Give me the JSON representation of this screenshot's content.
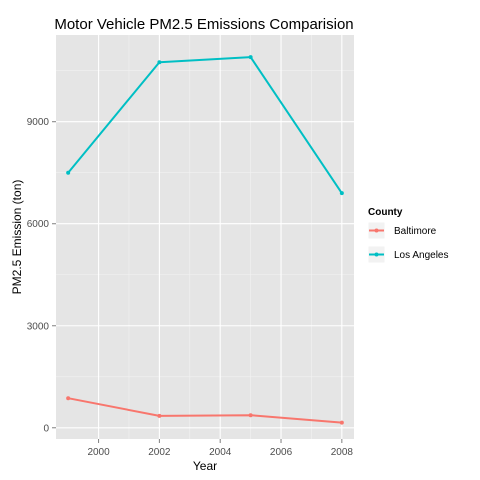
{
  "chart_data": {
    "type": "line",
    "title": "Motor Vehicle PM2.5 Emissions Comparision",
    "xlabel": "Year",
    "ylabel": "PM2.5 Emission (ton)",
    "x": [
      1999,
      2002,
      2005,
      2008
    ],
    "xlim": [
      1998.6,
      2008.4
    ],
    "ylim": [
      -330,
      11550
    ],
    "xticks": [
      2000,
      2002,
      2004,
      2006,
      2008
    ],
    "yticks": [
      0,
      3000,
      6000,
      9000
    ],
    "grid": true,
    "legend": {
      "title": "County",
      "position": "right"
    },
    "series": [
      {
        "name": "Baltimore",
        "color": "#f8766d",
        "values": [
          870,
          350,
          370,
          150
        ]
      },
      {
        "name": "Los Angeles",
        "color": "#00bfc4",
        "values": [
          7500,
          10750,
          10900,
          6900
        ]
      }
    ]
  }
}
